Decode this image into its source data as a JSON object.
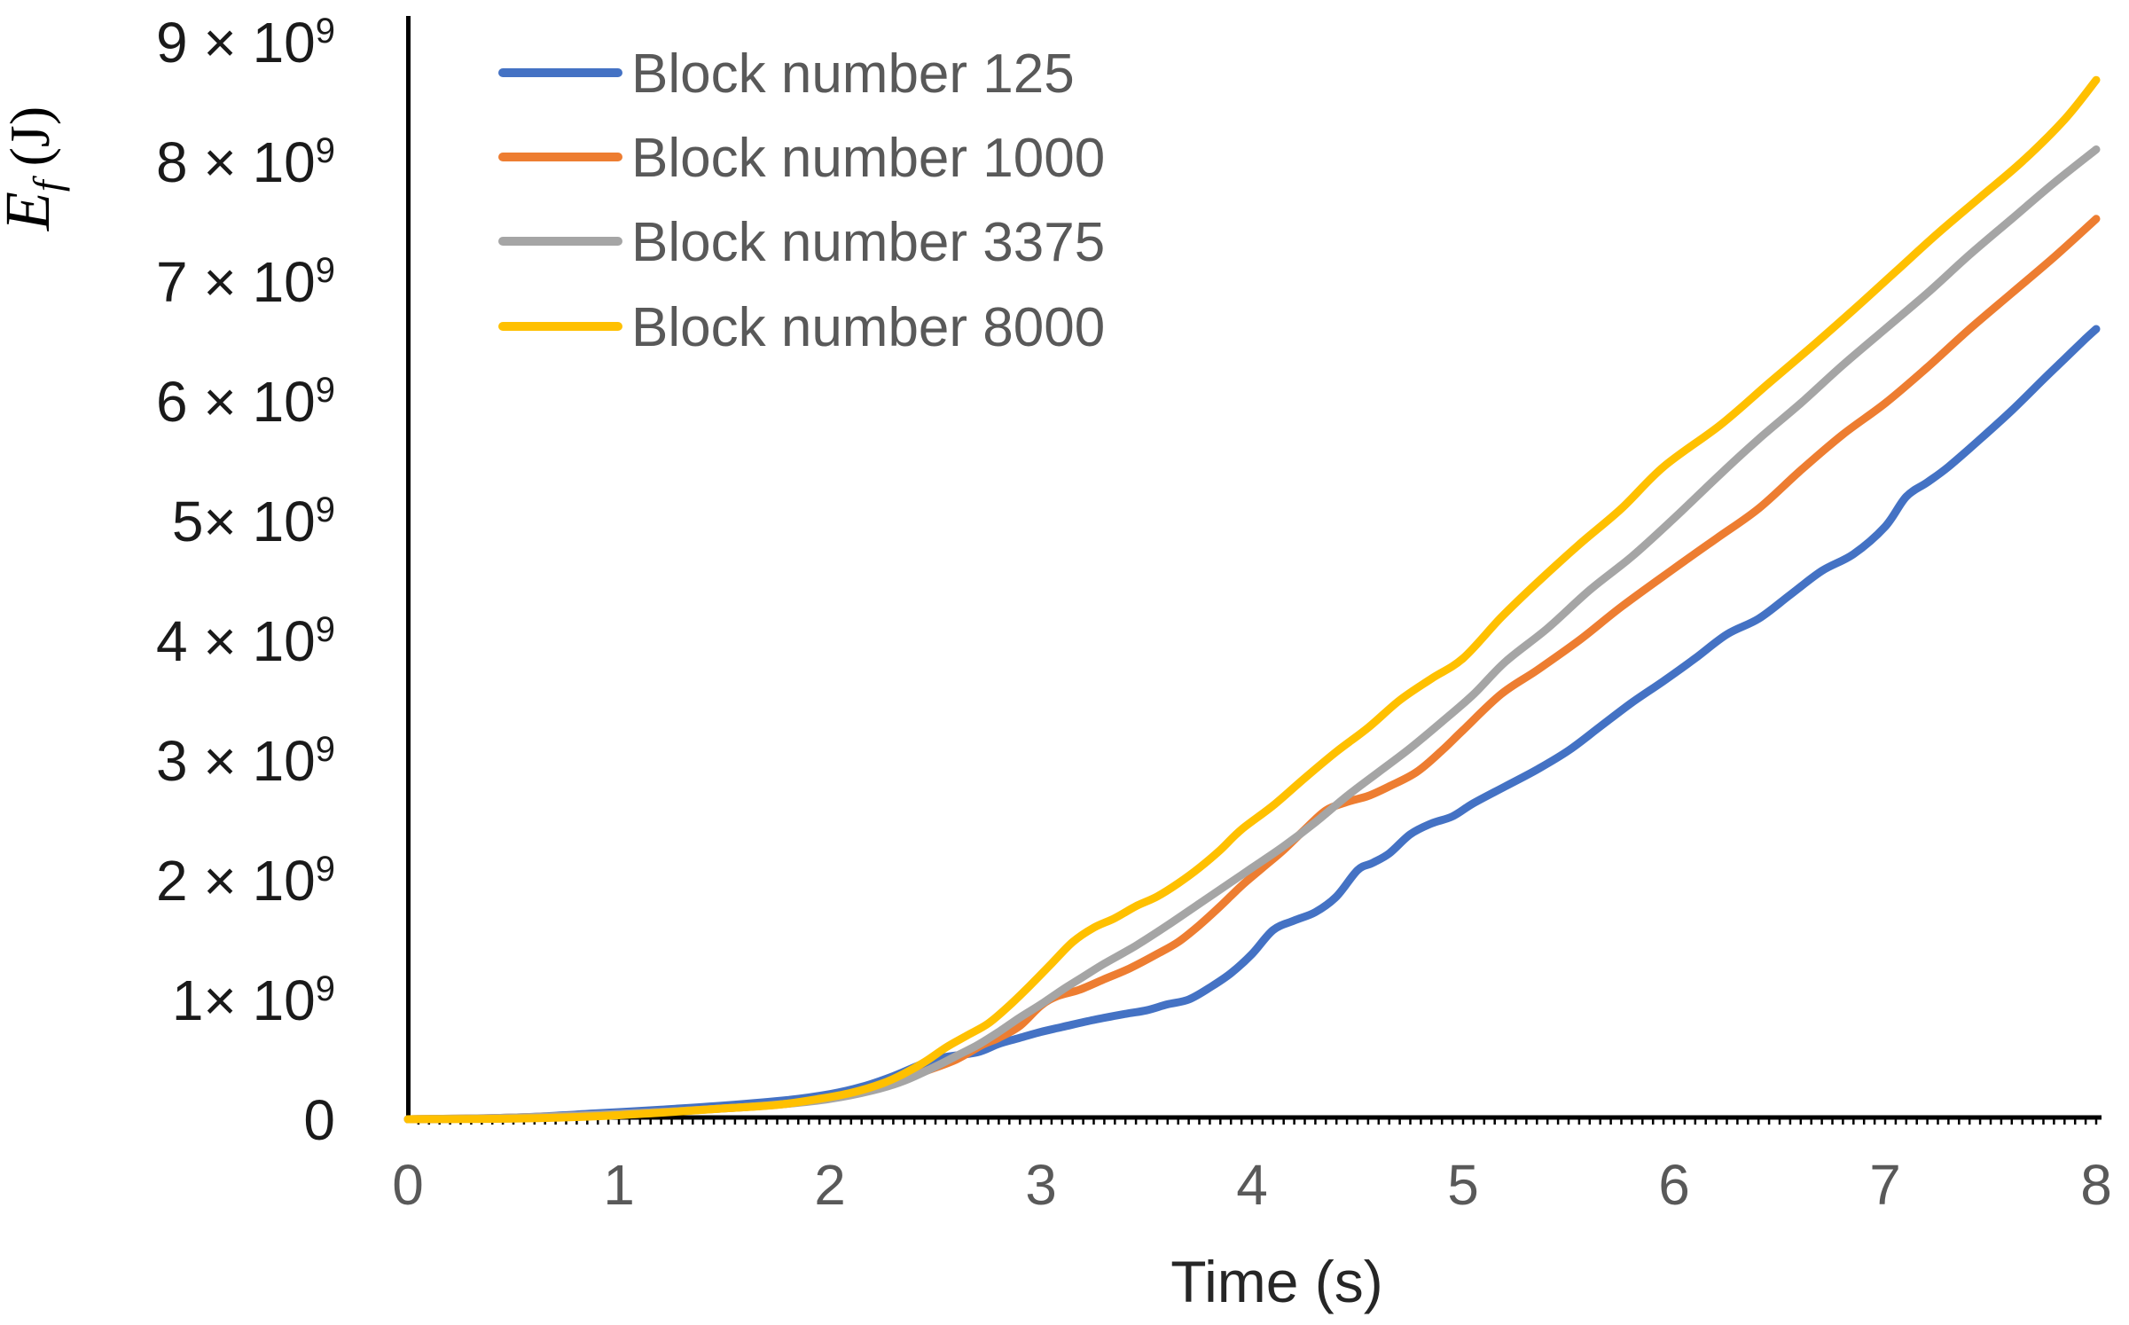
{
  "chart_data": {
    "type": "line",
    "title": "",
    "xlabel": "Time (s)",
    "ylabel": {
      "base": "E",
      "sub": "f",
      "unit": " (J)"
    },
    "x_range": [
      0,
      8
    ],
    "y_range_joules": [
      0,
      9000000000
    ],
    "values_scale_joules": 1000000000,
    "grid": false,
    "legend_position": "top-left",
    "axis_color": "#000000",
    "x_tick_label_color": "#595959",
    "y_tick_label_color": "#1a1a1a",
    "legend_text_color": "#595959",
    "xticks": [
      "0",
      "1",
      "2",
      "3",
      "4",
      "5",
      "6",
      "7",
      "8"
    ],
    "yticks": [
      {
        "text": "0",
        "sup": "",
        "value": 0
      },
      {
        "text": "1× 10",
        "sup": "9",
        "value": 1
      },
      {
        "text": "2 × 10",
        "sup": "9",
        "value": 2
      },
      {
        "text": "3 × 10",
        "sup": "9",
        "value": 3
      },
      {
        "text": "4 × 10",
        "sup": "9",
        "value": 4
      },
      {
        "text": "5× 10",
        "sup": "9",
        "value": 5
      },
      {
        "text": "6 × 10",
        "sup": "9",
        "value": 6
      },
      {
        "text": "7 × 10",
        "sup": "9",
        "value": 7
      },
      {
        "text": "8 × 10",
        "sup": "9",
        "value": 8
      },
      {
        "text": "9 × 10",
        "sup": "9",
        "value": 9
      }
    ],
    "series": [
      {
        "name": "Block number 125",
        "color": "#4472C4",
        "points": [
          [
            0,
            0
          ],
          [
            0.3,
            0.005
          ],
          [
            0.6,
            0.02
          ],
          [
            0.9,
            0.05
          ],
          [
            1.2,
            0.08
          ],
          [
            1.5,
            0.115
          ],
          [
            1.8,
            0.16
          ],
          [
            2.0,
            0.21
          ],
          [
            2.15,
            0.27
          ],
          [
            2.3,
            0.36
          ],
          [
            2.45,
            0.47
          ],
          [
            2.55,
            0.52
          ],
          [
            2.7,
            0.56
          ],
          [
            2.8,
            0.63
          ],
          [
            2.9,
            0.68
          ],
          [
            3.0,
            0.73
          ],
          [
            3.1,
            0.77
          ],
          [
            3.25,
            0.83
          ],
          [
            3.4,
            0.88
          ],
          [
            3.5,
            0.91
          ],
          [
            3.6,
            0.96
          ],
          [
            3.7,
            1.0
          ],
          [
            3.8,
            1.1
          ],
          [
            3.9,
            1.22
          ],
          [
            4.0,
            1.38
          ],
          [
            4.1,
            1.58
          ],
          [
            4.2,
            1.66
          ],
          [
            4.3,
            1.73
          ],
          [
            4.4,
            1.86
          ],
          [
            4.5,
            2.08
          ],
          [
            4.57,
            2.14
          ],
          [
            4.65,
            2.22
          ],
          [
            4.75,
            2.38
          ],
          [
            4.85,
            2.47
          ],
          [
            4.95,
            2.53
          ],
          [
            5.05,
            2.64
          ],
          [
            5.2,
            2.78
          ],
          [
            5.35,
            2.92
          ],
          [
            5.5,
            3.08
          ],
          [
            5.65,
            3.28
          ],
          [
            5.8,
            3.48
          ],
          [
            5.95,
            3.66
          ],
          [
            6.1,
            3.85
          ],
          [
            6.25,
            4.05
          ],
          [
            6.4,
            4.18
          ],
          [
            6.55,
            4.38
          ],
          [
            6.7,
            4.58
          ],
          [
            6.85,
            4.72
          ],
          [
            7.0,
            4.95
          ],
          [
            7.1,
            5.2
          ],
          [
            7.2,
            5.32
          ],
          [
            7.3,
            5.45
          ],
          [
            7.45,
            5.68
          ],
          [
            7.6,
            5.92
          ],
          [
            7.75,
            6.18
          ],
          [
            7.85,
            6.35
          ],
          [
            7.95,
            6.52
          ],
          [
            8.0,
            6.6
          ]
        ]
      },
      {
        "name": "Block number 1000",
        "color": "#ED7D31",
        "points": [
          [
            0,
            0
          ],
          [
            0.4,
            0.01
          ],
          [
            0.8,
            0.03
          ],
          [
            1.2,
            0.06
          ],
          [
            1.5,
            0.09
          ],
          [
            1.8,
            0.13
          ],
          [
            2.05,
            0.2
          ],
          [
            2.3,
            0.3
          ],
          [
            2.45,
            0.4
          ],
          [
            2.6,
            0.5
          ],
          [
            2.72,
            0.62
          ],
          [
            2.8,
            0.68
          ],
          [
            2.9,
            0.78
          ],
          [
            3.0,
            0.95
          ],
          [
            3.08,
            1.03
          ],
          [
            3.18,
            1.08
          ],
          [
            3.3,
            1.17
          ],
          [
            3.42,
            1.26
          ],
          [
            3.55,
            1.38
          ],
          [
            3.65,
            1.48
          ],
          [
            3.75,
            1.62
          ],
          [
            3.85,
            1.78
          ],
          [
            3.95,
            1.95
          ],
          [
            4.05,
            2.1
          ],
          [
            4.15,
            2.25
          ],
          [
            4.25,
            2.42
          ],
          [
            4.35,
            2.58
          ],
          [
            4.45,
            2.65
          ],
          [
            4.55,
            2.7
          ],
          [
            4.65,
            2.78
          ],
          [
            4.78,
            2.9
          ],
          [
            4.9,
            3.08
          ],
          [
            5.0,
            3.25
          ],
          [
            5.18,
            3.55
          ],
          [
            5.35,
            3.75
          ],
          [
            5.55,
            4.0
          ],
          [
            5.75,
            4.28
          ],
          [
            6.0,
            4.6
          ],
          [
            6.2,
            4.85
          ],
          [
            6.4,
            5.1
          ],
          [
            6.6,
            5.42
          ],
          [
            6.8,
            5.72
          ],
          [
            7.0,
            5.98
          ],
          [
            7.2,
            6.28
          ],
          [
            7.4,
            6.6
          ],
          [
            7.6,
            6.9
          ],
          [
            7.8,
            7.2
          ],
          [
            8.0,
            7.52
          ]
        ]
      },
      {
        "name": "Block number 3375",
        "color": "#A5A5A5",
        "points": [
          [
            0,
            0
          ],
          [
            0.4,
            0.01
          ],
          [
            0.8,
            0.03
          ],
          [
            1.2,
            0.06
          ],
          [
            1.5,
            0.09
          ],
          [
            1.8,
            0.13
          ],
          [
            2.0,
            0.17
          ],
          [
            2.2,
            0.24
          ],
          [
            2.35,
            0.32
          ],
          [
            2.5,
            0.44
          ],
          [
            2.6,
            0.53
          ],
          [
            2.7,
            0.62
          ],
          [
            2.8,
            0.73
          ],
          [
            2.9,
            0.85
          ],
          [
            3.0,
            0.96
          ],
          [
            3.1,
            1.08
          ],
          [
            3.2,
            1.19
          ],
          [
            3.3,
            1.3
          ],
          [
            3.45,
            1.45
          ],
          [
            3.6,
            1.62
          ],
          [
            3.75,
            1.8
          ],
          [
            3.9,
            1.98
          ],
          [
            4.0,
            2.1
          ],
          [
            4.15,
            2.28
          ],
          [
            4.3,
            2.48
          ],
          [
            4.45,
            2.7
          ],
          [
            4.6,
            2.9
          ],
          [
            4.75,
            3.1
          ],
          [
            4.9,
            3.32
          ],
          [
            5.05,
            3.55
          ],
          [
            5.2,
            3.82
          ],
          [
            5.4,
            4.1
          ],
          [
            5.6,
            4.42
          ],
          [
            5.8,
            4.7
          ],
          [
            6.0,
            5.02
          ],
          [
            6.22,
            5.39
          ],
          [
            6.4,
            5.68
          ],
          [
            6.6,
            5.98
          ],
          [
            6.8,
            6.3
          ],
          [
            7.0,
            6.6
          ],
          [
            7.2,
            6.9
          ],
          [
            7.4,
            7.22
          ],
          [
            7.6,
            7.52
          ],
          [
            7.8,
            7.82
          ],
          [
            8.0,
            8.1
          ]
        ]
      },
      {
        "name": "Block number 8000",
        "color": "#FFC000",
        "points": [
          [
            0,
            0
          ],
          [
            0.5,
            0.005
          ],
          [
            0.9,
            0.025
          ],
          [
            1.2,
            0.055
          ],
          [
            1.5,
            0.09
          ],
          [
            1.75,
            0.12
          ],
          [
            1.95,
            0.17
          ],
          [
            2.1,
            0.22
          ],
          [
            2.25,
            0.3
          ],
          [
            2.35,
            0.38
          ],
          [
            2.45,
            0.48
          ],
          [
            2.55,
            0.6
          ],
          [
            2.65,
            0.7
          ],
          [
            2.75,
            0.8
          ],
          [
            2.85,
            0.95
          ],
          [
            2.95,
            1.12
          ],
          [
            3.05,
            1.3
          ],
          [
            3.15,
            1.48
          ],
          [
            3.25,
            1.6
          ],
          [
            3.35,
            1.68
          ],
          [
            3.45,
            1.78
          ],
          [
            3.55,
            1.86
          ],
          [
            3.65,
            1.97
          ],
          [
            3.75,
            2.1
          ],
          [
            3.85,
            2.25
          ],
          [
            3.95,
            2.42
          ],
          [
            4.1,
            2.62
          ],
          [
            4.25,
            2.85
          ],
          [
            4.4,
            3.07
          ],
          [
            4.55,
            3.27
          ],
          [
            4.7,
            3.5
          ],
          [
            4.85,
            3.68
          ],
          [
            5.0,
            3.85
          ],
          [
            5.18,
            4.19
          ],
          [
            5.35,
            4.48
          ],
          [
            5.55,
            4.8
          ],
          [
            5.75,
            5.1
          ],
          [
            5.95,
            5.45
          ],
          [
            6.22,
            5.8
          ],
          [
            6.45,
            6.15
          ],
          [
            6.65,
            6.45
          ],
          [
            6.85,
            6.76
          ],
          [
            7.05,
            7.08
          ],
          [
            7.25,
            7.4
          ],
          [
            7.45,
            7.7
          ],
          [
            7.65,
            8.0
          ],
          [
            7.85,
            8.35
          ],
          [
            8.0,
            8.68
          ]
        ]
      }
    ]
  }
}
